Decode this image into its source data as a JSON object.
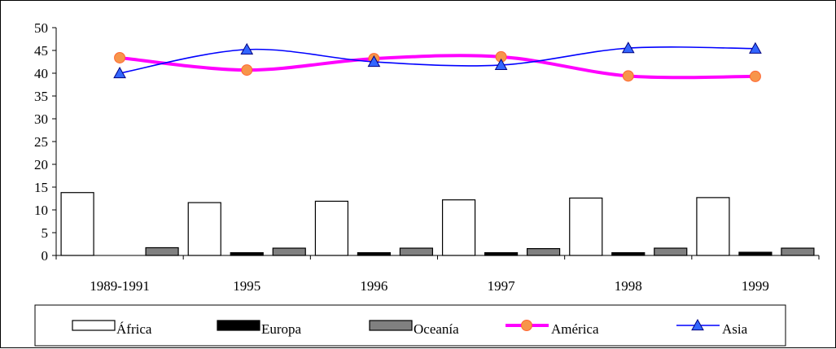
{
  "chart_data": {
    "type": "bar+line",
    "categories": [
      "1989-1991",
      "1995",
      "1996",
      "1997",
      "1998",
      "1999"
    ],
    "ylim": [
      0,
      50
    ],
    "yticks": [
      0,
      5,
      10,
      15,
      20,
      25,
      30,
      35,
      40,
      45,
      50
    ],
    "grid": false,
    "legend_position": "bottom",
    "bar_series": [
      {
        "name": "África",
        "values": [
          13.8,
          11.6,
          11.9,
          12.2,
          12.6,
          12.7
        ],
        "color": "#ffffff"
      },
      {
        "name": "Europa",
        "values": [
          0.0,
          0.6,
          0.6,
          0.6,
          0.6,
          0.7
        ],
        "color": "#000000"
      },
      {
        "name": "Oceanía",
        "values": [
          1.7,
          1.6,
          1.6,
          1.5,
          1.6,
          1.6
        ],
        "color": "#808080"
      }
    ],
    "line_series": [
      {
        "name": "América",
        "values": [
          43.4,
          40.7,
          43.2,
          43.6,
          39.4,
          39.3
        ],
        "color": "#ff00ff",
        "marker": "circle",
        "marker_color": "#f7954a"
      },
      {
        "name": "Asia",
        "values": [
          40.0,
          45.2,
          42.5,
          41.8,
          45.5,
          45.4
        ],
        "color": "#0000ff",
        "marker": "triangle",
        "marker_color": "#3366ff"
      }
    ]
  }
}
